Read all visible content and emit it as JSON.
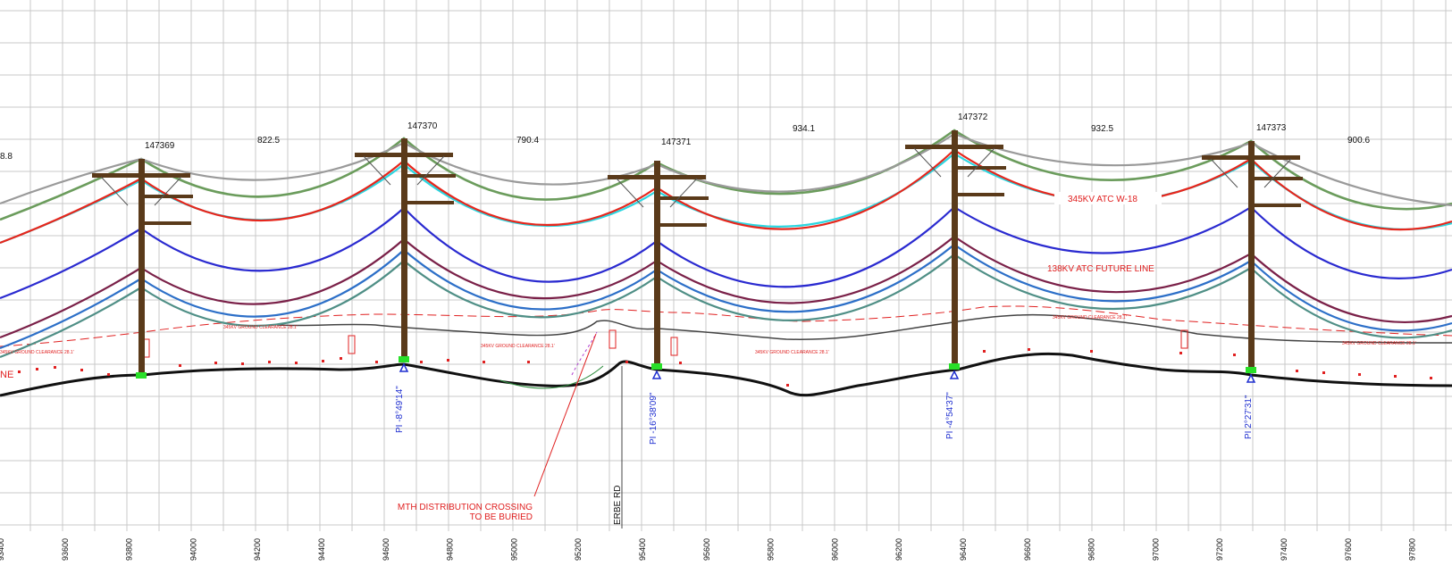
{
  "spans": [
    {
      "left": "8.8"
    },
    {
      "label": "822.5"
    },
    {
      "label": "790.4"
    },
    {
      "label": "934.1"
    },
    {
      "label": "932.5"
    },
    {
      "label": "900.6"
    }
  ],
  "structures": [
    {
      "id": "147369",
      "pi": ""
    },
    {
      "id": "147370",
      "pi": "PI -8°49'14\""
    },
    {
      "id": "147371",
      "pi": "PI -16°38'09\""
    },
    {
      "id": "147372",
      "pi": "PI -4°54'37\""
    },
    {
      "id": "147373",
      "pi": "PI 2°27'31\""
    }
  ],
  "line_labels": {
    "w18": "345KV ATC W-18",
    "future": "138KV ATC FUTURE LINE",
    "left_fragment": "NE",
    "clearance": "345KV GROUND CLEARANCE 28.1'"
  },
  "annotations": {
    "mth_line1": "MTH DISTRIBUTION CROSSING",
    "mth_line2": "TO BE BURIED",
    "road": "ERBE RD"
  },
  "stations": [
    "93400",
    "93600",
    "93800",
    "94000",
    "94200",
    "94400",
    "94600",
    "94800",
    "95000",
    "95200",
    "95400",
    "95600",
    "95800",
    "96000",
    "96200",
    "96400",
    "96600",
    "96800",
    "97000",
    "97200",
    "97400",
    "97600",
    "97800"
  ],
  "colors": {
    "grid": "#c8c8c8",
    "shield": "#6b9c5c",
    "gray_wire": "#9a9a9a",
    "red_wire": "#e6261c",
    "cyan_wire": "#2bd6e0",
    "blue_wire": "#2a2ad0",
    "maroon_wire": "#7a2048",
    "mid_blue": "#2c6fc8",
    "teal_wire": "#4f8f86",
    "pole": "#5a3a1a",
    "ground": "#111111",
    "pi_text": "#1f2fd0",
    "note_red": "#e02020"
  }
}
